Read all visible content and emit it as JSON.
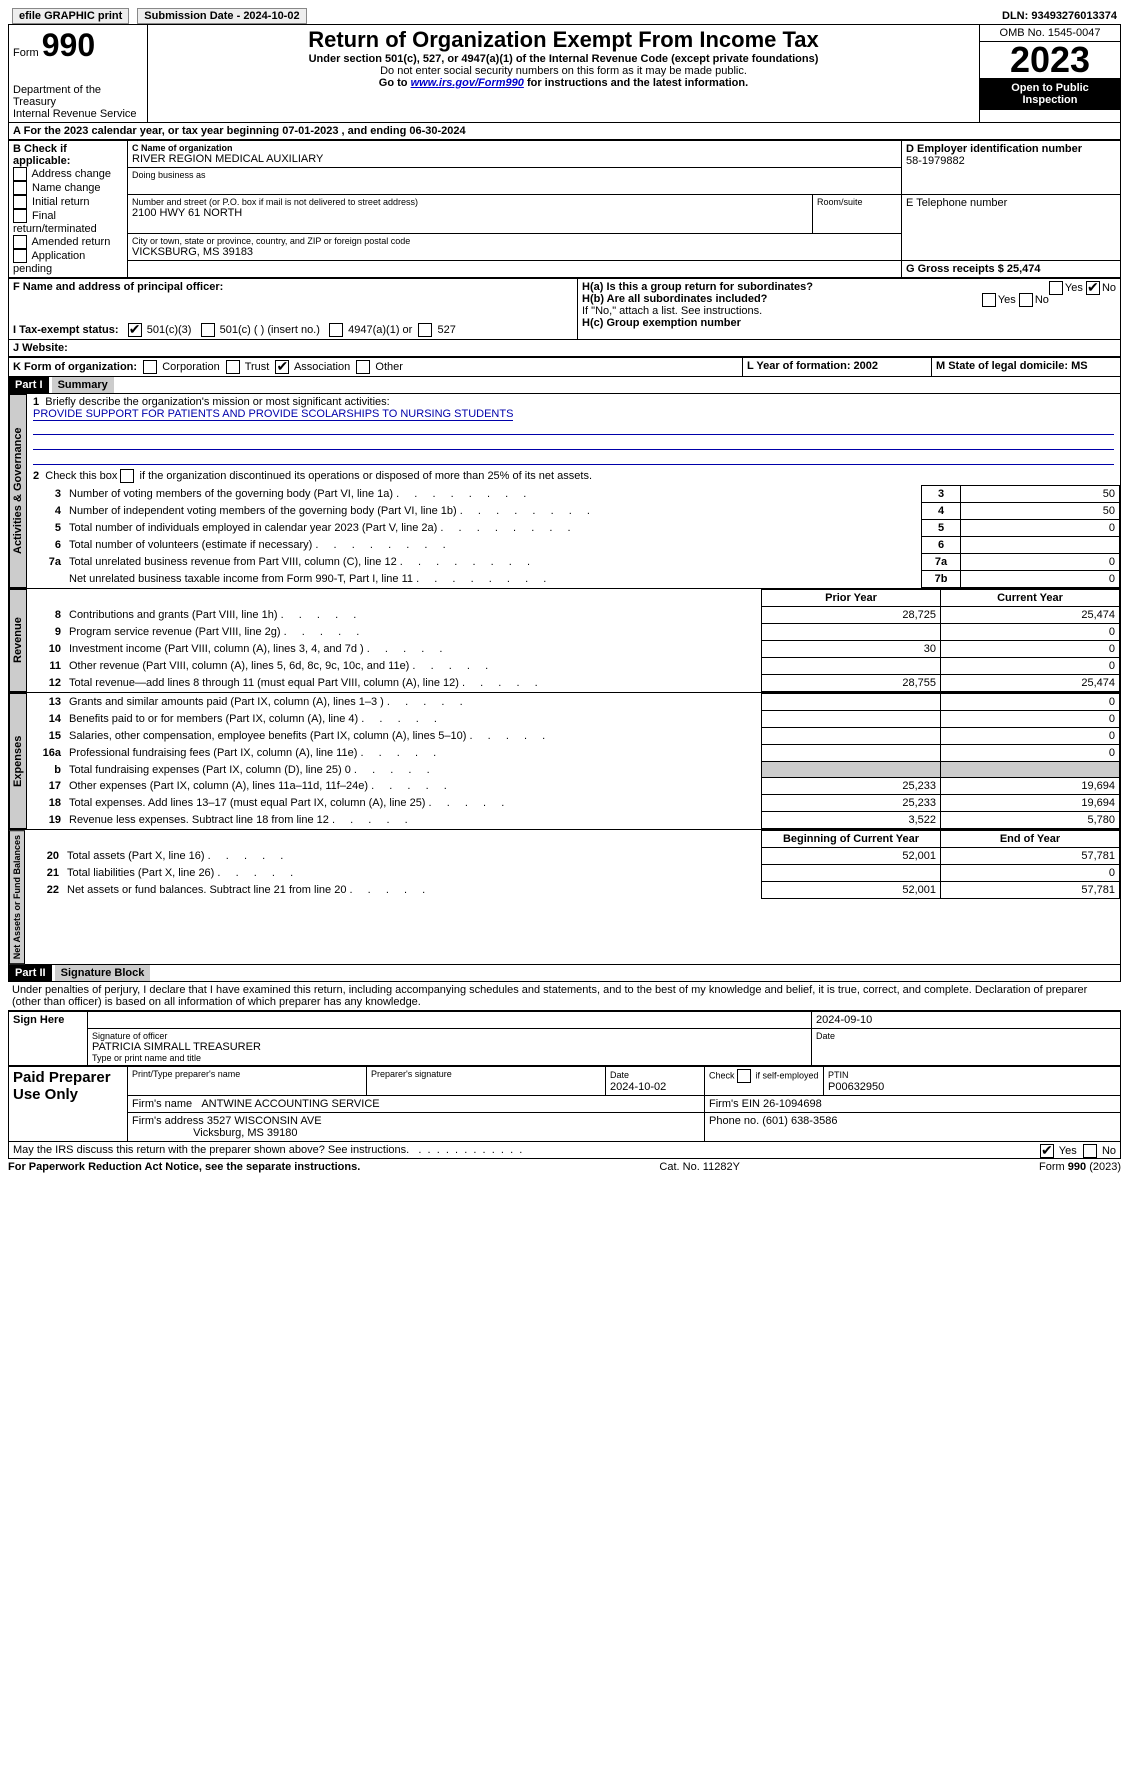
{
  "topbar": {
    "efile": "efile GRAPHIC print",
    "submission_label": "Submission Date - 2024-10-02",
    "dln_label": "DLN: 93493276013374"
  },
  "header": {
    "form_label": "Form",
    "form_num": "990",
    "dept1": "Department of the Treasury",
    "dept2": "Internal Revenue Service",
    "title": "Return of Organization Exempt From Income Tax",
    "subtitle": "Under section 501(c), 527, or 4947(a)(1) of the Internal Revenue Code (except private foundations)",
    "warn": "Do not enter social security numbers on this form as it may be made public.",
    "goto_pre": "Go to ",
    "goto_link": "www.irs.gov/Form990",
    "goto_post": " for instructions and the latest information.",
    "omb": "OMB No. 1545-0047",
    "year": "2023",
    "inspection": "Open to Public Inspection"
  },
  "lineA": "For the 2023 calendar year, or tax year beginning 07-01-2023    , and ending 06-30-2024",
  "boxB": {
    "label": "B Check if applicable:",
    "items": [
      "Address change",
      "Name change",
      "Initial return",
      "Final return/terminated",
      "Amended return",
      "Application pending"
    ]
  },
  "boxC": {
    "name_label": "C Name of organization",
    "name": "RIVER REGION MEDICAL AUXILIARY",
    "dba_label": "Doing business as",
    "addr_label": "Number and street (or P.O. box if mail is not delivered to street address)",
    "addr": "2100 HWY 61 NORTH",
    "room_label": "Room/suite",
    "city_label": "City or town, state or province, country, and ZIP or foreign postal code",
    "city": "VICKSBURG, MS  39183"
  },
  "boxD": {
    "label": "D Employer identification number",
    "value": "58-1979882"
  },
  "boxE": {
    "label": "E Telephone number"
  },
  "boxG": {
    "label": "G Gross receipts $ 25,474"
  },
  "boxF": {
    "label": "F  Name and address of principal officer:"
  },
  "boxH": {
    "a": "H(a)  Is this a group return for subordinates?",
    "b": "H(b)  Are all subordinates included?",
    "b_note": "If \"No,\" attach a list. See instructions.",
    "c": "H(c)  Group exemption number",
    "yes": "Yes",
    "no": "No"
  },
  "boxI": {
    "label": "I  Tax-exempt status:",
    "o1": "501(c)(3)",
    "o2": "501(c) (  ) (insert no.)",
    "o3": "4947(a)(1) or",
    "o4": "527"
  },
  "boxJ": {
    "label": "J  Website:"
  },
  "boxK": {
    "label": "K Form of organization:",
    "o1": "Corporation",
    "o2": "Trust",
    "o3": "Association",
    "o4": "Other"
  },
  "boxL": {
    "label": "L Year of formation: 2002"
  },
  "boxM": {
    "label": "M State of legal domicile: MS"
  },
  "part1": {
    "hdr": "Part I",
    "title": "Summary"
  },
  "sideLabels": {
    "ag": "Activities & Governance",
    "rev": "Revenue",
    "exp": "Expenses",
    "na": "Net Assets or Fund Balances"
  },
  "summary": {
    "l1_label": "Briefly describe the organization's mission or most significant activities:",
    "l1_text": "PROVIDE SUPPORT FOR PATIENTS AND PROVIDE SCOLARSHIPS TO NURSING STUDENTS",
    "l2": "Check this box      if the organization discontinued its operations or disposed of more than 25% of its net assets.",
    "rows_ag": [
      {
        "n": "3",
        "label": "Number of voting members of the governing body (Part VI, line 1a)",
        "box": "3",
        "val": "50"
      },
      {
        "n": "4",
        "label": "Number of independent voting members of the governing body (Part VI, line 1b)",
        "box": "4",
        "val": "50"
      },
      {
        "n": "5",
        "label": "Total number of individuals employed in calendar year 2023 (Part V, line 2a)",
        "box": "5",
        "val": "0"
      },
      {
        "n": "6",
        "label": "Total number of volunteers (estimate if necessary)",
        "box": "6",
        "val": ""
      },
      {
        "n": "7a",
        "label": "Total unrelated business revenue from Part VIII, column (C), line 12",
        "box": "7a",
        "val": "0"
      },
      {
        "n": "",
        "label": "Net unrelated business taxable income from Form 990-T, Part I, line 11",
        "box": "7b",
        "val": "0"
      }
    ],
    "hdr_prior": "Prior Year",
    "hdr_curr": "Current Year",
    "rows_rev": [
      {
        "n": "8",
        "label": "Contributions and grants (Part VIII, line 1h)",
        "p": "28,725",
        "c": "25,474"
      },
      {
        "n": "9",
        "label": "Program service revenue (Part VIII, line 2g)",
        "p": "",
        "c": "0"
      },
      {
        "n": "10",
        "label": "Investment income (Part VIII, column (A), lines 3, 4, and 7d )",
        "p": "30",
        "c": "0"
      },
      {
        "n": "11",
        "label": "Other revenue (Part VIII, column (A), lines 5, 6d, 8c, 9c, 10c, and 11e)",
        "p": "",
        "c": "0"
      },
      {
        "n": "12",
        "label": "Total revenue—add lines 8 through 11 (must equal Part VIII, column (A), line 12)",
        "p": "28,755",
        "c": "25,474"
      }
    ],
    "rows_exp": [
      {
        "n": "13",
        "label": "Grants and similar amounts paid (Part IX, column (A), lines 1–3 )",
        "p": "",
        "c": "0"
      },
      {
        "n": "14",
        "label": "Benefits paid to or for members (Part IX, column (A), line 4)",
        "p": "",
        "c": "0"
      },
      {
        "n": "15",
        "label": "Salaries, other compensation, employee benefits (Part IX, column (A), lines 5–10)",
        "p": "",
        "c": "0"
      },
      {
        "n": "16a",
        "label": "Professional fundraising fees (Part IX, column (A), line 11e)",
        "p": "",
        "c": "0"
      },
      {
        "n": "b",
        "label": "Total fundraising expenses (Part IX, column (D), line 25) 0",
        "p": "SHADE",
        "c": "SHADE"
      },
      {
        "n": "17",
        "label": "Other expenses (Part IX, column (A), lines 11a–11d, 11f–24e)",
        "p": "25,233",
        "c": "19,694"
      },
      {
        "n": "18",
        "label": "Total expenses. Add lines 13–17 (must equal Part IX, column (A), line 25)",
        "p": "25,233",
        "c": "19,694"
      },
      {
        "n": "19",
        "label": "Revenue less expenses. Subtract line 18 from line 12",
        "p": "3,522",
        "c": "5,780"
      }
    ],
    "hdr_boy": "Beginning of Current Year",
    "hdr_eoy": "End of Year",
    "rows_na": [
      {
        "n": "20",
        "label": "Total assets (Part X, line 16)",
        "p": "52,001",
        "c": "57,781"
      },
      {
        "n": "21",
        "label": "Total liabilities (Part X, line 26)",
        "p": "",
        "c": "0"
      },
      {
        "n": "22",
        "label": "Net assets or fund balances. Subtract line 21 from line 20",
        "p": "52,001",
        "c": "57,781"
      }
    ]
  },
  "part2": {
    "hdr": "Part II",
    "title": "Signature Block",
    "decl": "Under penalties of perjury, I declare that I have examined this return, including accompanying schedules and statements, and to the best of my knowledge and belief, it is true, correct, and complete. Declaration of preparer (other than officer) is based on all information of which preparer has any knowledge."
  },
  "sign": {
    "here": "Sign Here",
    "sig_label": "Signature of officer",
    "date_top": "2024-09-10",
    "date_label": "Date",
    "name": "PATRICIA SIMRALL  TREASURER",
    "name_label": "Type or print name and title"
  },
  "paid": {
    "label": "Paid Preparer Use Only",
    "c1": "Print/Type preparer's name",
    "c2": "Preparer's signature",
    "c3_label": "Date",
    "c3_val": "2024-10-02",
    "c4_label": "Check         if self-employed",
    "c5_label": "PTIN",
    "c5_val": "P00632950",
    "firm_label": "Firm's name",
    "firm_val": "ANTWINE ACCOUNTING SERVICE",
    "ein_label": "Firm's EIN  26-1094698",
    "addr_label": "Firm's address",
    "addr_val1": "3527 WISCONSIN AVE",
    "addr_val2": "Vicksburg, MS  39180",
    "phone_label": "Phone no. (601) 638-3586"
  },
  "footer": {
    "discuss": "May the IRS discuss this return with the preparer shown above? See instructions.",
    "yes": "Yes",
    "no": "No",
    "pra": "For Paperwork Reduction Act Notice, see the separate instructions.",
    "cat": "Cat. No. 11282Y",
    "form": "Form 990 (2023)"
  }
}
